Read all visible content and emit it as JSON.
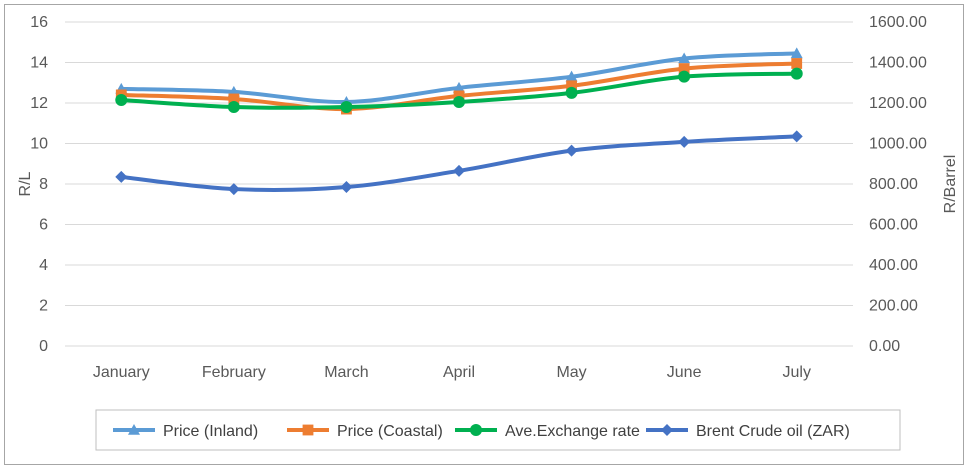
{
  "chart_data": {
    "type": "line",
    "categories": [
      "January",
      "February",
      "March",
      "April",
      "May",
      "June",
      "July"
    ],
    "y_left": {
      "label": "R/L",
      "range": [
        0,
        16
      ],
      "ticks": [
        0,
        2,
        4,
        6,
        8,
        10,
        12,
        14,
        16
      ],
      "tick_labels": [
        "0",
        "2",
        "4",
        "6",
        "8",
        "10",
        "12",
        "14",
        "16"
      ]
    },
    "y_right": {
      "label": "R/Barrel",
      "range": [
        0,
        1600
      ],
      "ticks": [
        0,
        200,
        400,
        600,
        800,
        1000,
        1200,
        1400,
        1600
      ],
      "tick_labels": [
        "0.00",
        "200.00",
        "400.00",
        "600.00",
        "800.00",
        "1000.00",
        "1200.00",
        "1400.00",
        "1600.00"
      ]
    },
    "grid": true,
    "legend_position": "bottom",
    "series": [
      {
        "name": "Price (Inland)",
        "axis": "left",
        "color": "#5b9bd5",
        "marker": "triangle",
        "values": [
          12.7,
          12.55,
          12.05,
          12.75,
          13.3,
          14.2,
          14.45
        ]
      },
      {
        "name": "Price (Coastal)",
        "axis": "left",
        "color": "#ed7d31",
        "marker": "square",
        "values": [
          12.4,
          12.2,
          11.7,
          12.35,
          12.85,
          13.7,
          13.95
        ]
      },
      {
        "name": "Ave.Exchange rate",
        "axis": "left",
        "color": "#00b050",
        "marker": "circle",
        "values": [
          12.15,
          11.8,
          11.8,
          12.05,
          12.5,
          13.3,
          13.45
        ]
      },
      {
        "name": "Brent Crude oil (ZAR)",
        "axis": "right",
        "color": "#4472c4",
        "marker": "diamond",
        "values": [
          835,
          775,
          785,
          865,
          965,
          1008,
          1035
        ]
      }
    ]
  }
}
